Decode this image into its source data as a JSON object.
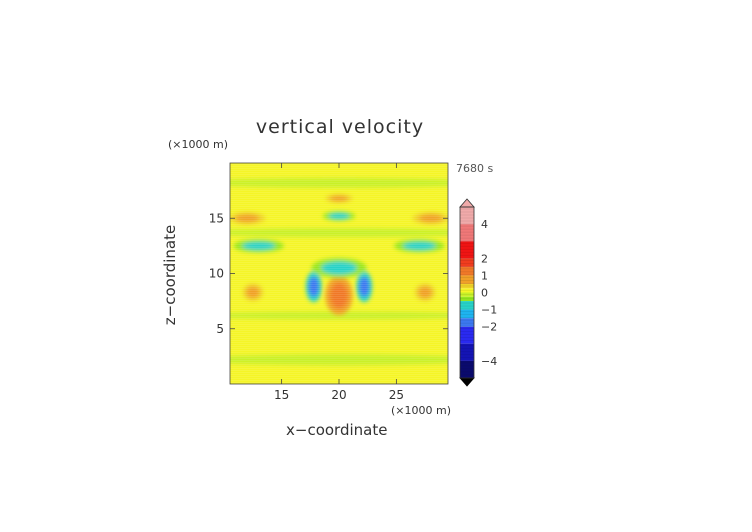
{
  "chart_data": {
    "type": "heatmap",
    "title": "vertical velocity",
    "xlabel": "x−coordinate",
    "ylabel": "z−coordinate",
    "x_unit": "(×1000 m)",
    "y_unit": "(×1000 m)",
    "time_label": "7680 s",
    "xlim": [
      10.5,
      29.5
    ],
    "ylim": [
      0,
      20
    ],
    "x_ticks": [
      15,
      20,
      25
    ],
    "y_ticks": [
      5,
      10,
      15
    ],
    "colorbar": {
      "levels": [
        -5,
        -4,
        -3,
        -2,
        -1.5,
        -1,
        -0.5,
        -0.25,
        0,
        0.25,
        0.5,
        1,
        1.5,
        2,
        3,
        4,
        5
      ],
      "colors": [
        "#0a0a6e",
        "#1414b4",
        "#2a2af0",
        "#3c78f0",
        "#1eb4f0",
        "#28d2c8",
        "#96e61e",
        "#c8f028",
        "#f5f528",
        "#f0d228",
        "#f0a028",
        "#f07828",
        "#f03c1e",
        "#f01414",
        "#f07878",
        "#f0aaaa"
      ],
      "tick_labels": [
        "4",
        "2",
        "1",
        "0",
        "−1",
        "−2",
        "−4"
      ],
      "tick_values": [
        4,
        2,
        1,
        0,
        -1,
        -2,
        -4
      ]
    },
    "features": [
      {
        "name": "central updraft",
        "x": 20,
        "z": 8,
        "value": 1.0
      },
      {
        "name": "left downdraft",
        "x": 17.8,
        "z": 8.8,
        "value": -2.0
      },
      {
        "name": "right downdraft",
        "x": 22.2,
        "z": 8.8,
        "value": -2.0
      },
      {
        "name": "upper downdraft arc",
        "x": 20,
        "z": 10.5,
        "value": -1.0
      },
      {
        "name": "upper left downdraft band",
        "x": 13,
        "z": 12.5,
        "value": -1.0
      },
      {
        "name": "upper right downdraft band",
        "x": 27,
        "z": 12.5,
        "value": -1.0
      },
      {
        "name": "top center downdraft",
        "x": 20,
        "z": 15.2,
        "value": -1.0
      },
      {
        "name": "left updraft pocket",
        "x": 12.5,
        "z": 8.3,
        "value": 0.5
      },
      {
        "name": "right updraft pocket",
        "x": 27.5,
        "z": 8.3,
        "value": 0.5
      },
      {
        "name": "upper left updraft",
        "x": 12,
        "z": 15,
        "value": 0.5
      },
      {
        "name": "upper right updraft",
        "x": 28,
        "z": 15,
        "value": 0.5
      },
      {
        "name": "top center updraft",
        "x": 20,
        "z": 16.8,
        "value": 0.5
      }
    ]
  }
}
